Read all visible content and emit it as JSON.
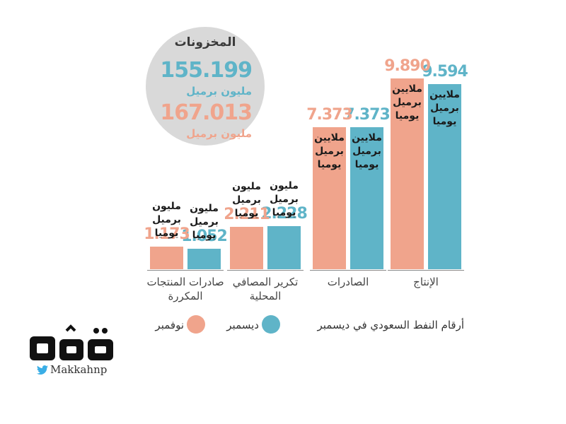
{
  "colors": {
    "december": "#5fb4c8",
    "november": "#f0a48c",
    "inventory_circle": "#d9d9d9"
  },
  "inventory": {
    "title": "المخزونات",
    "december": {
      "value": "155.199",
      "unit": "مليون برميل"
    },
    "november": {
      "value": "167.013",
      "unit": "مليون برميل"
    }
  },
  "chart_data": {
    "type": "bar",
    "title": "أرقام النفط السعودي في ديسمبر",
    "categories": [
      "الإنتاج",
      "الصادرات",
      "تكرير المصافي المحلية",
      "صادرات المنتجات المكررة"
    ],
    "series": [
      {
        "name": "ديسمبر",
        "values": [
          9.594,
          7.373,
          2.228,
          1.052
        ],
        "labels": [
          "9.594",
          "7.373",
          "2.228",
          "1.052"
        ],
        "units": [
          "ملايين برميل يوميا",
          "ملايين برميل يوميا",
          "مليون برميل يوميا",
          "مليون برميل يوميا"
        ]
      },
      {
        "name": "نوفمبر",
        "values": [
          9.89,
          7.373,
          2.211,
          1.173
        ],
        "labels": [
          "9.890",
          "7.373",
          "2.211",
          "1.173"
        ],
        "units": [
          "ملايين برميل يوميا",
          "ملايين برميل يوميا",
          "مليون برميل يوميا",
          "مليون برميل يوميا"
        ]
      }
    ],
    "legend": {
      "title": "أرقام النفط السعودي في ديسمبر",
      "items": [
        "ديسمبر",
        "نوفمبر"
      ]
    }
  },
  "categories_display": [
    {
      "line1": "الإنتاج",
      "line2": ""
    },
    {
      "line1": "الصادرات",
      "line2": ""
    },
    {
      "line1": "تكرير المصافي",
      "line2": "المحلية"
    },
    {
      "line1": "صادرات المنتجات",
      "line2": "المكررة"
    }
  ],
  "logo": {
    "handle": "Makkahnp",
    "icon": "twitter-bird-icon"
  }
}
